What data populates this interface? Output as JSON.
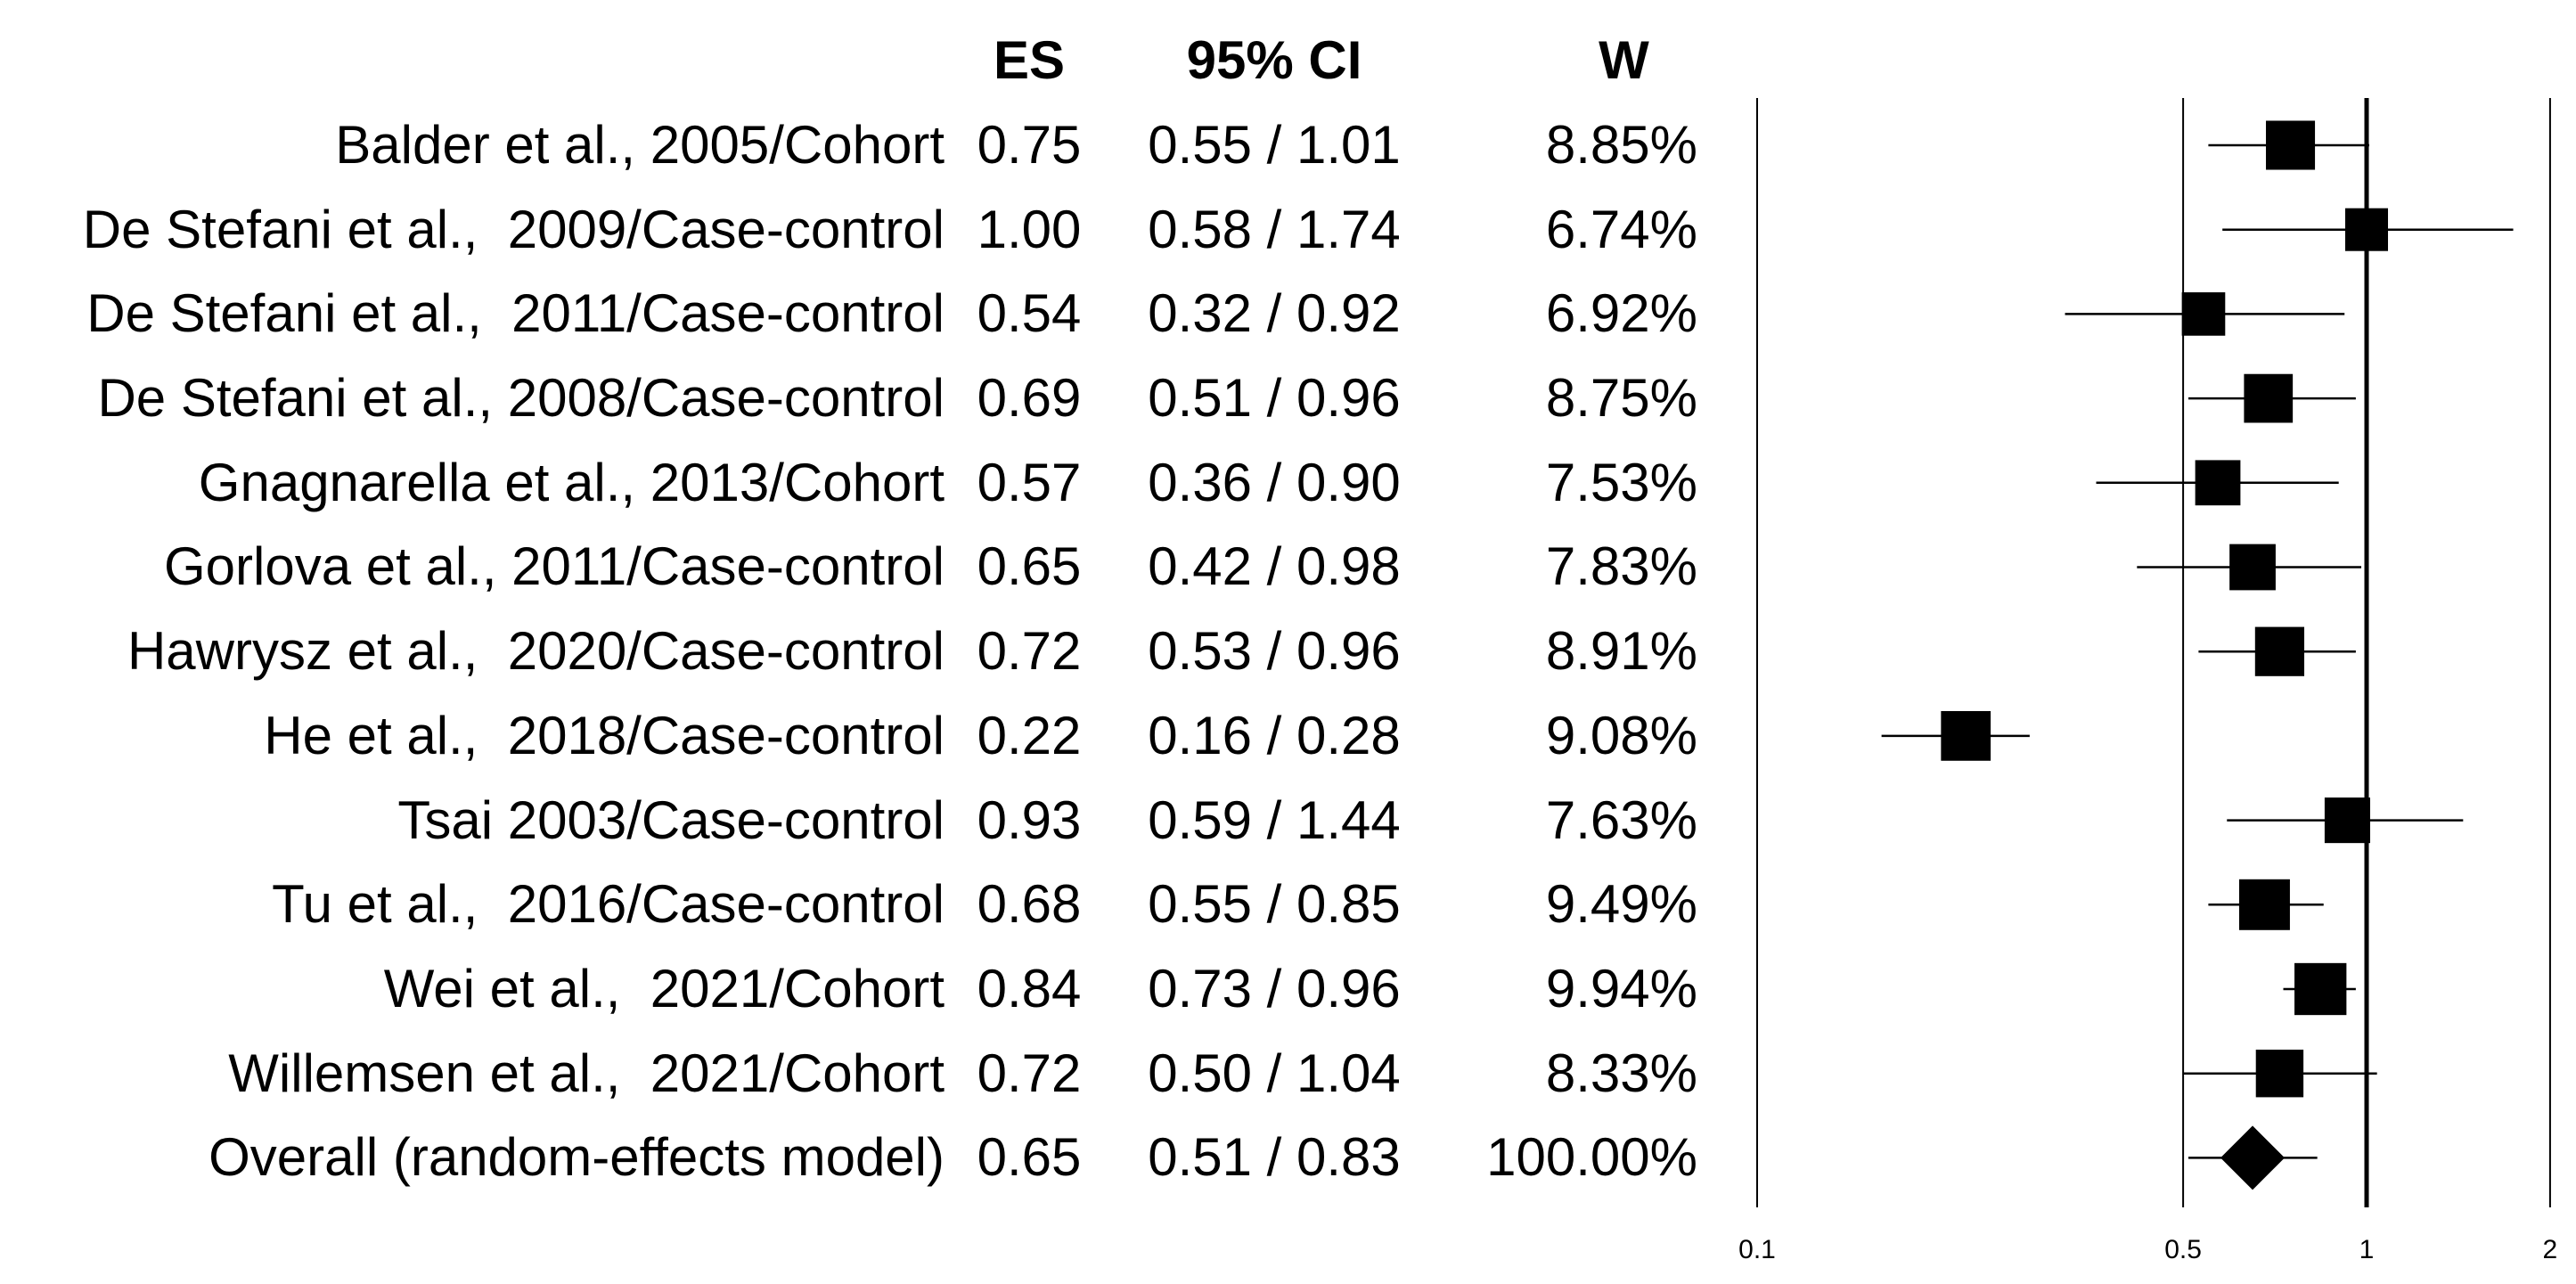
{
  "chart_data": {
    "type": "forest",
    "columns": [
      "ES",
      "95% CI",
      "W"
    ],
    "x_axis": {
      "scale": "log",
      "ticks": [
        0.1,
        0.5,
        1,
        2
      ],
      "tick_labels": [
        "0.1",
        "0.5",
        "1",
        "2"
      ],
      "reference_line": 1,
      "range": [
        0.1,
        2
      ]
    },
    "colors": {
      "marker": "#000000",
      "line": "#000000",
      "background": "#ffffff"
    },
    "rows": [
      {
        "label": "Balder et al., 2005/Cohort",
        "es": 0.75,
        "ci_low": 0.55,
        "ci_high": 1.01,
        "weight": 8.85,
        "es_text": "0.75",
        "ci_text": "0.55 / 1.01",
        "w_text": "8.85%",
        "marker": "square"
      },
      {
        "label": "De Stefani et al.,  2009/Case-control",
        "es": 1.0,
        "ci_low": 0.58,
        "ci_high": 1.74,
        "weight": 6.74,
        "es_text": "1.00",
        "ci_text": "0.58 / 1.74",
        "w_text": "6.74%",
        "marker": "square"
      },
      {
        "label": "De Stefani et al.,  2011/Case-control",
        "es": 0.54,
        "ci_low": 0.32,
        "ci_high": 0.92,
        "weight": 6.92,
        "es_text": "0.54",
        "ci_text": "0.32 / 0.92",
        "w_text": "6.92%",
        "marker": "square"
      },
      {
        "label": "De Stefani et al., 2008/Case-control",
        "es": 0.69,
        "ci_low": 0.51,
        "ci_high": 0.96,
        "weight": 8.75,
        "es_text": "0.69",
        "ci_text": "0.51 / 0.96",
        "w_text": "8.75%",
        "marker": "square"
      },
      {
        "label": "Gnagnarella et al., 2013/Cohort",
        "es": 0.57,
        "ci_low": 0.36,
        "ci_high": 0.9,
        "weight": 7.53,
        "es_text": "0.57",
        "ci_text": "0.36 / 0.90",
        "w_text": "7.53%",
        "marker": "square"
      },
      {
        "label": "Gorlova et al., 2011/Case-control",
        "es": 0.65,
        "ci_low": 0.42,
        "ci_high": 0.98,
        "weight": 7.83,
        "es_text": "0.65",
        "ci_text": "0.42 / 0.98",
        "w_text": "7.83%",
        "marker": "square"
      },
      {
        "label": "Hawrysz et al.,  2020/Case-control",
        "es": 0.72,
        "ci_low": 0.53,
        "ci_high": 0.96,
        "weight": 8.91,
        "es_text": "0.72",
        "ci_text": "0.53 / 0.96",
        "w_text": "8.91%",
        "marker": "square"
      },
      {
        "label": "He et al.,  2018/Case-control",
        "es": 0.22,
        "ci_low": 0.16,
        "ci_high": 0.28,
        "weight": 9.08,
        "es_text": "0.22",
        "ci_text": "0.16 / 0.28",
        "w_text": "9.08%",
        "marker": "square"
      },
      {
        "label": "Tsai 2003/Case-control",
        "es": 0.93,
        "ci_low": 0.59,
        "ci_high": 1.44,
        "weight": 7.63,
        "es_text": "0.93",
        "ci_text": "0.59 / 1.44",
        "w_text": "7.63%",
        "marker": "square"
      },
      {
        "label": "Tu et al.,  2016/Case-control",
        "es": 0.68,
        "ci_low": 0.55,
        "ci_high": 0.85,
        "weight": 9.49,
        "es_text": "0.68",
        "ci_text": "0.55 / 0.85",
        "w_text": "9.49%",
        "marker": "square"
      },
      {
        "label": "Wei et al.,  2021/Cohort",
        "es": 0.84,
        "ci_low": 0.73,
        "ci_high": 0.96,
        "weight": 9.94,
        "es_text": "0.84",
        "ci_text": "0.73 / 0.96",
        "w_text": "9.94%",
        "marker": "square"
      },
      {
        "label": "Willemsen et al.,  2021/Cohort",
        "es": 0.72,
        "ci_low": 0.5,
        "ci_high": 1.04,
        "weight": 8.33,
        "es_text": "0.72",
        "ci_text": "0.50 / 1.04",
        "w_text": "8.33%",
        "marker": "square"
      },
      {
        "label": "Overall (random-effects model)",
        "es": 0.65,
        "ci_low": 0.51,
        "ci_high": 0.83,
        "weight": 100.0,
        "es_text": "0.65",
        "ci_text": "0.51 / 0.83",
        "w_text": "100.00%",
        "marker": "diamond"
      }
    ]
  }
}
